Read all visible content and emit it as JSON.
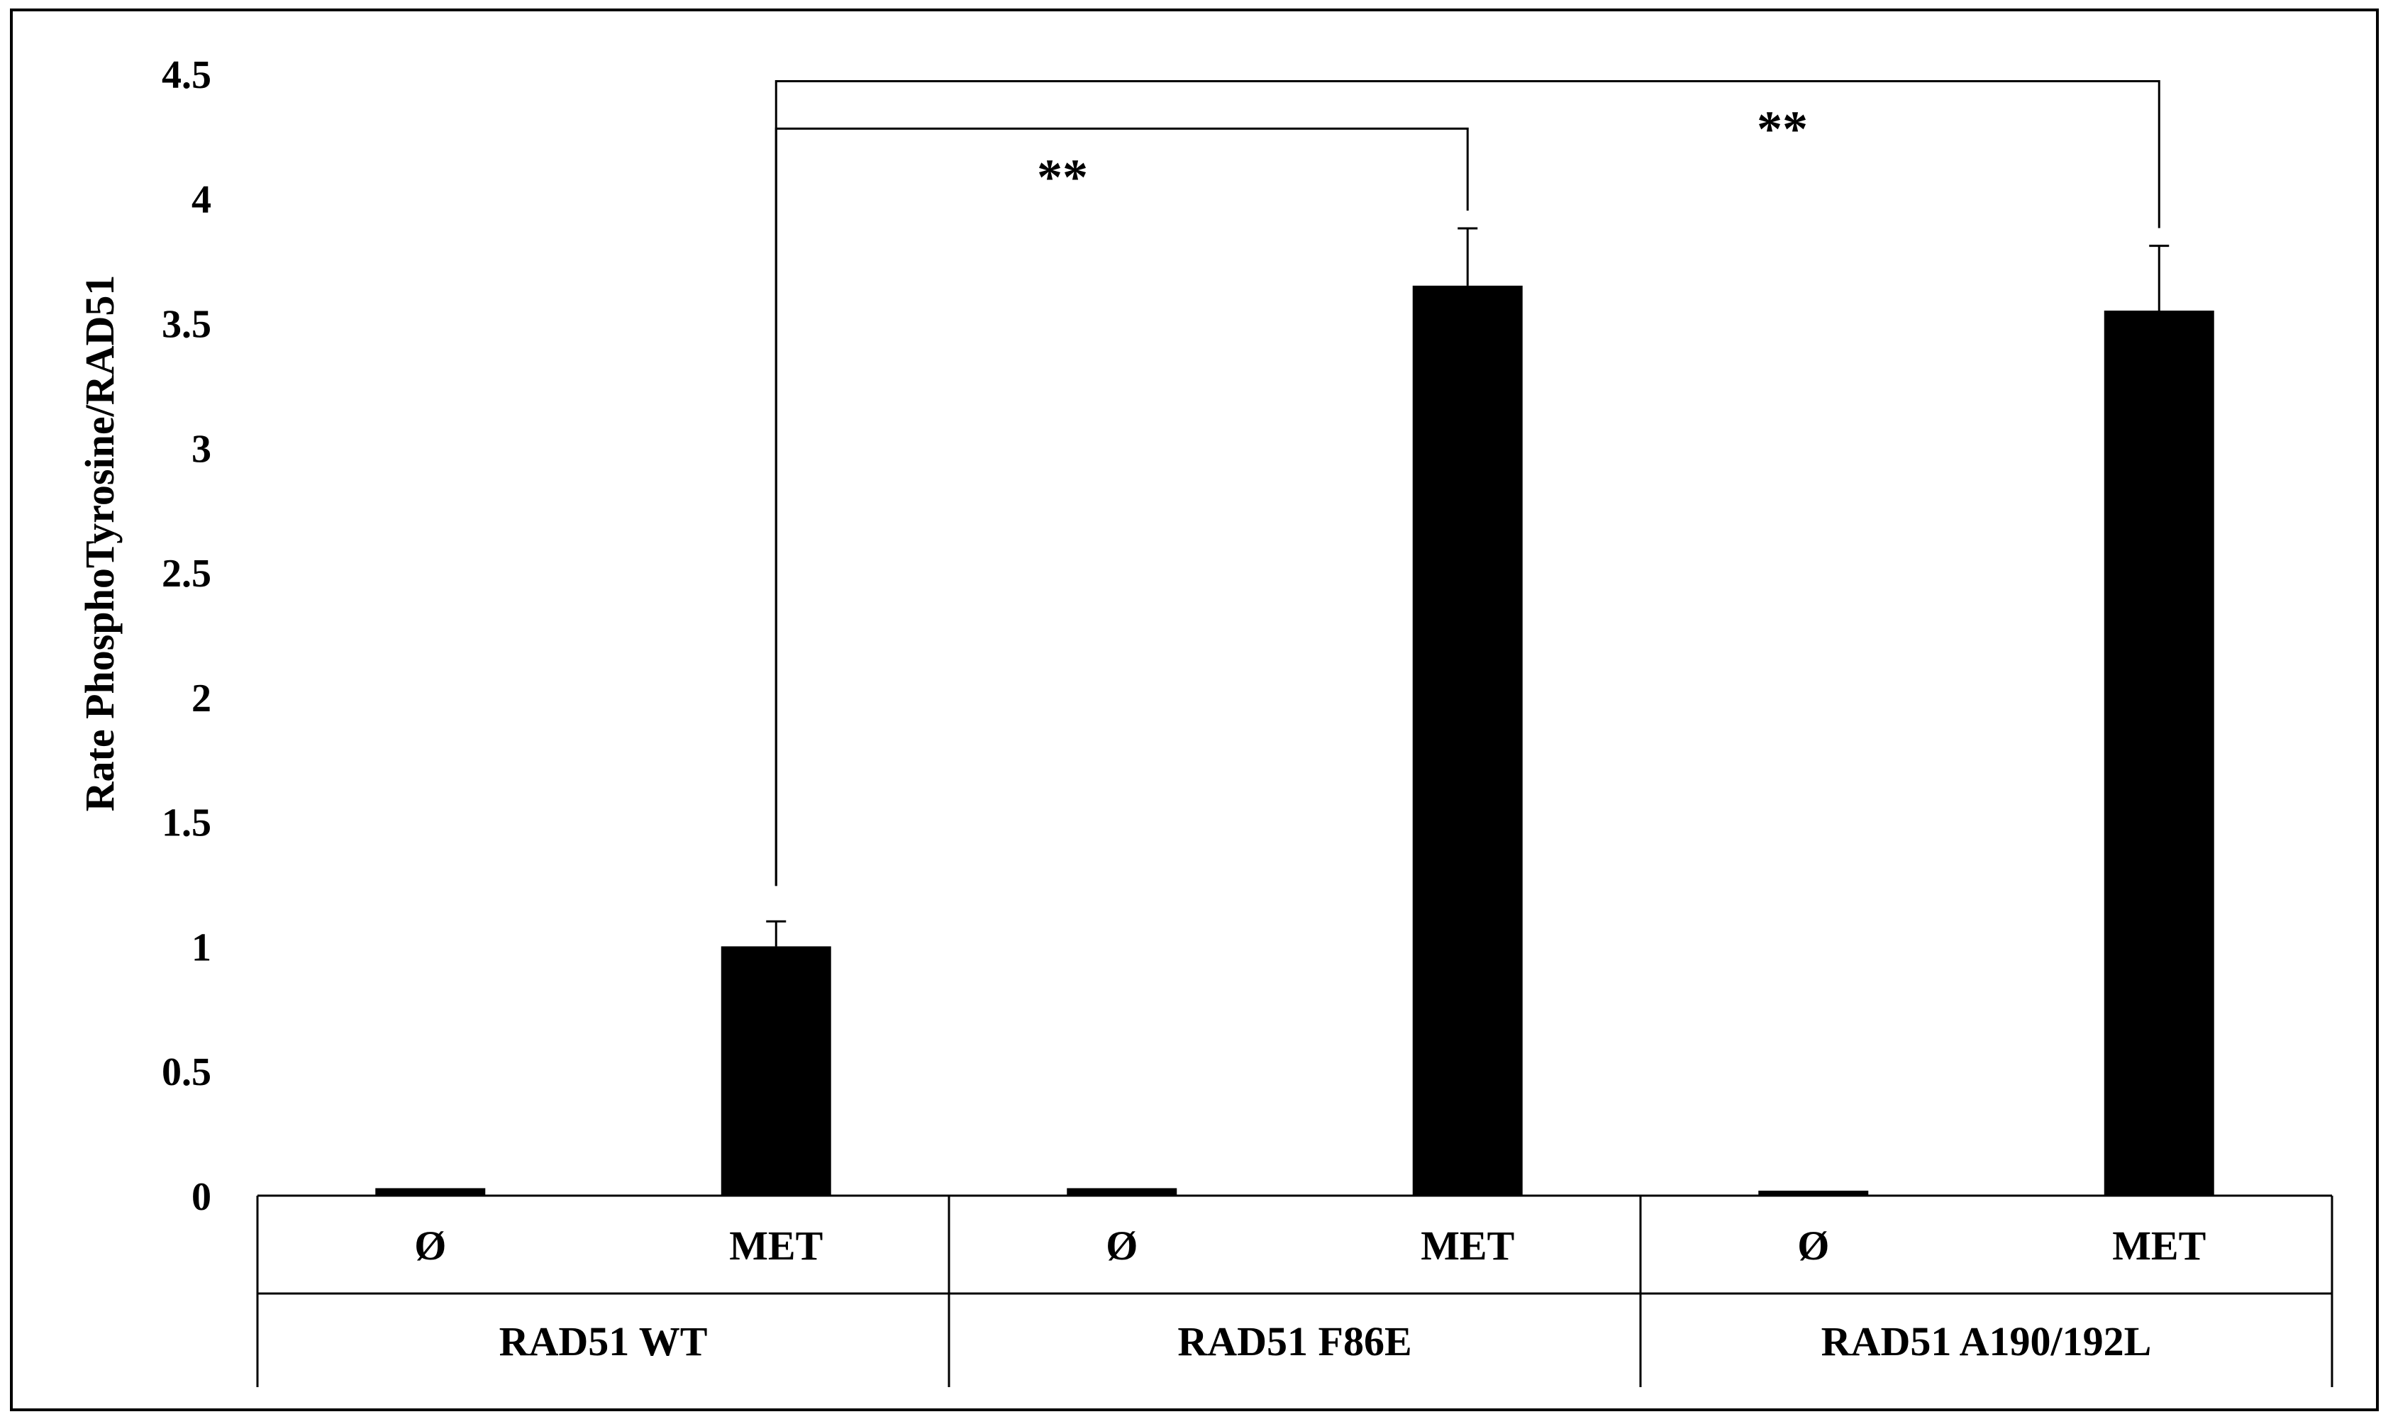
{
  "chart_data": {
    "type": "bar",
    "title": "",
    "ylabel": "Rate PhosphoTyrosine/RAD51",
    "xlabel": "",
    "ylim": [
      0,
      4.5
    ],
    "yticks": [
      "0",
      "0.5",
      "1",
      "1.5",
      "2",
      "2.5",
      "3",
      "3.5",
      "4",
      "4.5"
    ],
    "ytick_values": [
      0,
      0.5,
      1,
      1.5,
      2,
      2.5,
      3,
      3.5,
      4,
      4.5
    ],
    "grid": false,
    "legend": "none",
    "bar_color": "#000000",
    "groups": [
      {
        "label": "RAD51 WT",
        "bars": [
          {
            "label": "Ø",
            "value": 0.03,
            "error": 0.0
          },
          {
            "label": "MET",
            "value": 1.0,
            "error": 0.1
          }
        ]
      },
      {
        "label": "RAD51 F86E",
        "bars": [
          {
            "label": "Ø",
            "value": 0.03,
            "error": 0.0
          },
          {
            "label": "MET",
            "value": 3.65,
            "error": 0.23
          }
        ]
      },
      {
        "label": "RAD51 A190/192L",
        "bars": [
          {
            "label": "Ø",
            "value": 0.02,
            "error": 0.0
          },
          {
            "label": "MET",
            "value": 3.55,
            "error": 0.26
          }
        ]
      }
    ],
    "annotations": [
      {
        "text": "**",
        "from": [
          0,
          1
        ],
        "to": [
          1,
          1
        ],
        "bracket_y": 4.28
      },
      {
        "text": "**",
        "from": [
          0,
          1
        ],
        "to": [
          2,
          1
        ],
        "bracket_y": 4.47
      }
    ]
  }
}
